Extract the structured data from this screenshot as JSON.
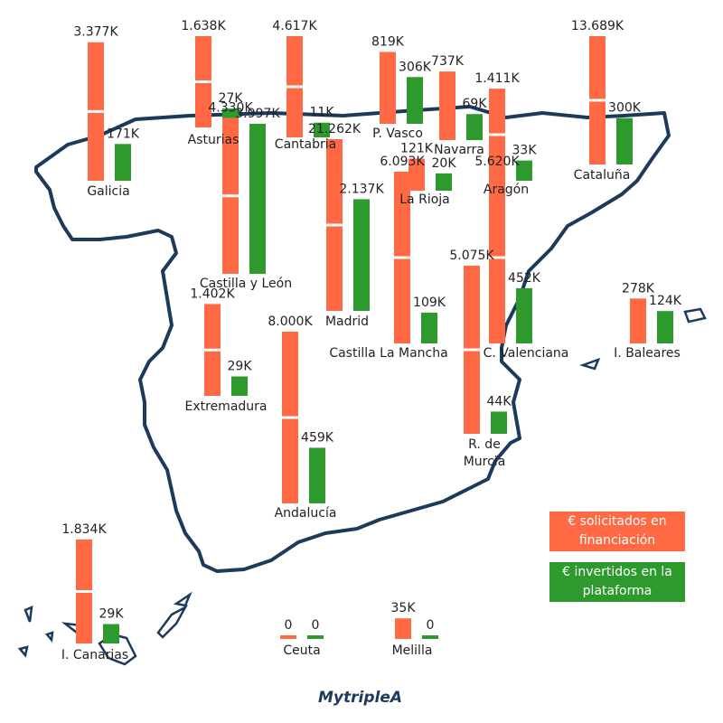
{
  "chart_data": {
    "type": "map-bar",
    "categories": [
      "Galicia",
      "Asturias",
      "Cantabria",
      "P. Vasco",
      "Navarra",
      "Aragón",
      "Cataluña",
      "Castilla y León",
      "La Rioja",
      "Madrid",
      "Castilla La Mancha",
      "C. Valenciana",
      "I. Baleares",
      "Extremadura",
      "Andalucía",
      "R. de Murcia",
      "I. Canarias",
      "Ceuta",
      "Melilla"
    ],
    "series": [
      {
        "name": "€ solicitados en financiación",
        "color": "#ff6a45",
        "values": [
          3377,
          1638,
          4617,
          819,
          737,
          1411,
          13689,
          4330,
          121,
          21262,
          6093,
          5620,
          278,
          1402,
          8000,
          5075,
          1834,
          0,
          35
        ],
        "value_labels": [
          "3.377K",
          "1.638K",
          "4.617K",
          "819K",
          "737K",
          "1.411K",
          "13.689K",
          "4.330K",
          "121K",
          "21.262K",
          "6.093K",
          "5.620K",
          "278K",
          "1.402K",
          "8.000K",
          "5.075K",
          "1.834K",
          "0",
          "35K"
        ]
      },
      {
        "name": "€ invertidos en la plataforma",
        "color": "#2e9a2e",
        "values": [
          171,
          27,
          11,
          306,
          69,
          33,
          300,
          3997,
          20,
          2137,
          109,
          452,
          124,
          29,
          459,
          44,
          29,
          0,
          0
        ],
        "value_labels": [
          "171K",
          "27K",
          "11K",
          "306K",
          "69K",
          "33K",
          "300K",
          "3.997K",
          "20K",
          "2.137K",
          "109K",
          "452K",
          "124K",
          "29K",
          "459K",
          "44K",
          "29K",
          "0",
          "0"
        ]
      }
    ]
  },
  "logo": "MytripleA"
}
